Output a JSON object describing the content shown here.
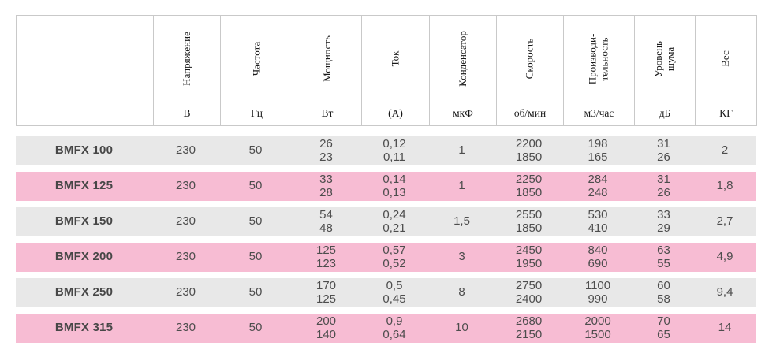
{
  "colors": {
    "row_gray": "#e8e8e8",
    "row_pink": "#f7bcd3",
    "border": "#c9c9c9",
    "data_text": "#4d4d4d",
    "header_text": "#1a1a1a"
  },
  "table": {
    "columns": [
      {
        "name": "",
        "unit": ""
      },
      {
        "name": "Напряжение",
        "unit": "В"
      },
      {
        "name": "Частота",
        "unit": "Гц"
      },
      {
        "name": "Мощность",
        "unit": "Вт"
      },
      {
        "name": "Ток",
        "unit": "(А)"
      },
      {
        "name": "Конденсатор",
        "unit": "мкФ"
      },
      {
        "name": "Скорость",
        "unit": "об/мин"
      },
      {
        "name": "Производи-\nтельность",
        "unit": "м3/час"
      },
      {
        "name": "Уровень\nшума",
        "unit": "дБ"
      },
      {
        "name": "Вес",
        "unit": "КГ"
      }
    ],
    "rows": [
      {
        "model": "BMFX 100",
        "values": [
          "230",
          "50",
          "26\n23",
          "0,12\n0,11",
          "1",
          "2200\n1850",
          "198\n165",
          "31\n26",
          "2"
        ]
      },
      {
        "model": "BMFX 125",
        "values": [
          "230",
          "50",
          "33\n28",
          "0,14\n0,13",
          "1",
          "2250\n1850",
          "284\n248",
          "31\n26",
          "1,8"
        ]
      },
      {
        "model": "BMFX 150",
        "values": [
          "230",
          "50",
          "54\n48",
          "0,24\n0,21",
          "1,5",
          "2550\n1850",
          "530\n410",
          "33\n29",
          "2,7"
        ]
      },
      {
        "model": "BMFX 200",
        "values": [
          "230",
          "50",
          "125\n123",
          "0,57\n0,52",
          "3",
          "2450\n1950",
          "840\n690",
          "63\n55",
          "4,9"
        ]
      },
      {
        "model": "BMFX 250",
        "values": [
          "230",
          "50",
          "170\n125",
          "0,5\n0,45",
          "8",
          "2750\n2400",
          "1100\n990",
          "60\n58",
          "9,4"
        ]
      },
      {
        "model": "BMFX 315",
        "values": [
          "230",
          "50",
          "200\n140",
          "0,9\n0,64",
          "10",
          "2680\n2150",
          "2000\n1500",
          "70\n65",
          "14"
        ]
      }
    ]
  }
}
